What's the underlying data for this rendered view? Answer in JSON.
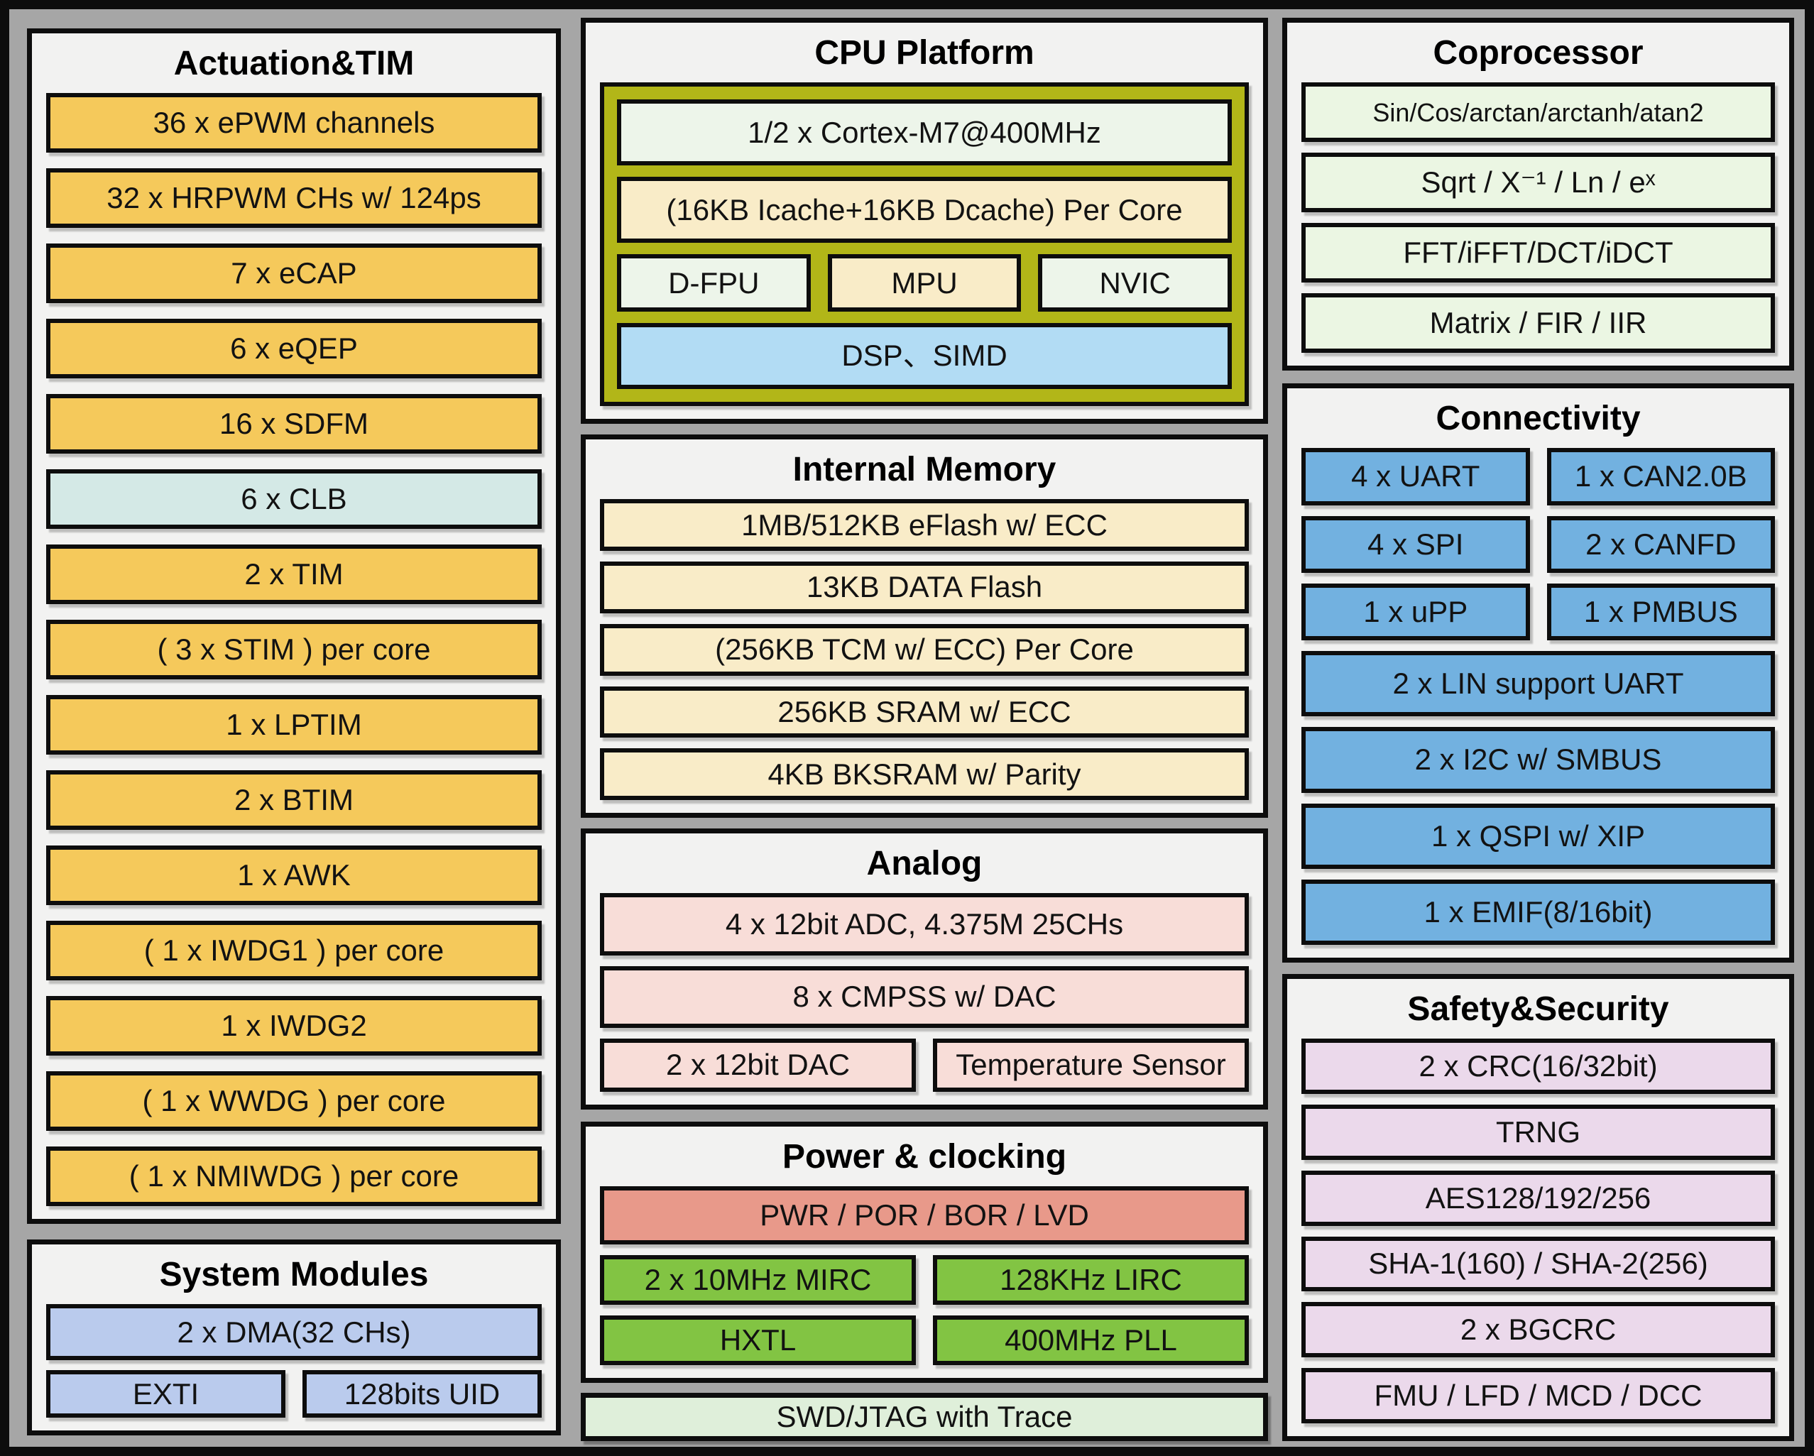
{
  "palette": {
    "background_gray": "#A6A6A6",
    "frame_black": "#0d0d0d",
    "panel_bg": "#F2F2F1",
    "timer_gold": "#F5C95B",
    "clb_teal": "#D4E9E6",
    "system_lavender": "#BACBED",
    "cpu_olive": "#B2B618",
    "core_pale_green": "#EDF5EA",
    "memory_cream": "#F9ECC8",
    "dsp_sky_blue": "#B2DCF4",
    "analog_pink": "#F8DDD8",
    "power_salmon": "#E8998A",
    "clock_green": "#82C443",
    "swd_mint": "#DFEFDA",
    "coprocessor_pale_green": "#EBF6E3",
    "connectivity_blue": "#72B1E0",
    "safety_lilac": "#EBD9EB"
  },
  "actuation": {
    "title": "Actuation&TIM",
    "items": [
      "36 x ePWM channels",
      "32 x HRPWM CHs w/ 124ps",
      "7 x eCAP",
      "6 x eQEP",
      "16 x SDFM",
      "6 x CLB",
      "2 x TIM",
      "( 3 x STIM ) per core",
      "1 x LPTIM",
      "2 x BTIM",
      "1 x AWK",
      "( 1 x IWDG1 ) per core",
      "1 x IWDG2",
      "( 1 x WWDG ) per core",
      "( 1 x NMIWDG ) per core"
    ]
  },
  "system_modules": {
    "title": "System Modules",
    "dma": "2 x DMA(32 CHs)",
    "exti": "EXTI",
    "uid": "128bits UID"
  },
  "cpu": {
    "title": "CPU Platform",
    "core": "1/2 x Cortex-M7@400MHz",
    "cache": "(16KB Icache+16KB Dcache) Per Core",
    "fpu": "D-FPU",
    "mpu": "MPU",
    "nvic": "NVIC",
    "dsp": "DSP、SIMD"
  },
  "memory": {
    "title": "Internal Memory",
    "items": [
      "1MB/512KB eFlash w/ ECC",
      "13KB DATA Flash",
      "(256KB TCM w/ ECC) Per Core",
      "256KB SRAM w/ ECC",
      "4KB BKSRAM w/ Parity"
    ]
  },
  "analog": {
    "title": "Analog",
    "adc": "4 x 12bit ADC, 4.375M 25CHs",
    "cmpss": "8 x CMPSS w/ DAC",
    "dac": "2 x 12bit DAC",
    "temp": "Temperature Sensor"
  },
  "power": {
    "title": "Power & clocking",
    "pwr": "PWR / POR / BOR / LVD",
    "rows": [
      [
        "2 x 10MHz MIRC",
        "128KHz LIRC"
      ],
      [
        "HXTL",
        "400MHz PLL"
      ]
    ]
  },
  "swd": {
    "label": "SWD/JTAG with Trace"
  },
  "coprocessor": {
    "title": "Coprocessor",
    "items": [
      "Sin/Cos/arctan/arctanh/atan2",
      "Sqrt / X⁻¹ / Ln / eˣ",
      "FFT/iFFT/DCT/iDCT",
      "Matrix / FIR / IIR"
    ]
  },
  "connectivity": {
    "title": "Connectivity",
    "grid": [
      [
        "4 x UART",
        "1 x CAN2.0B"
      ],
      [
        "4 x SPI",
        "2 x CANFD"
      ],
      [
        "1 x uPP",
        "1 x PMBUS"
      ]
    ],
    "full": [
      "2 x LIN support UART",
      "2 x I2C w/ SMBUS",
      "1 x QSPI w/ XIP",
      "1 x EMIF(8/16bit)"
    ]
  },
  "safety": {
    "title": "Safety&Security",
    "items": [
      "2 x CRC(16/32bit)",
      "TRNG",
      "AES128/192/256",
      "SHA-1(160) / SHA-2(256)",
      "2 x BGCRC",
      "FMU / LFD / MCD / DCC"
    ]
  }
}
